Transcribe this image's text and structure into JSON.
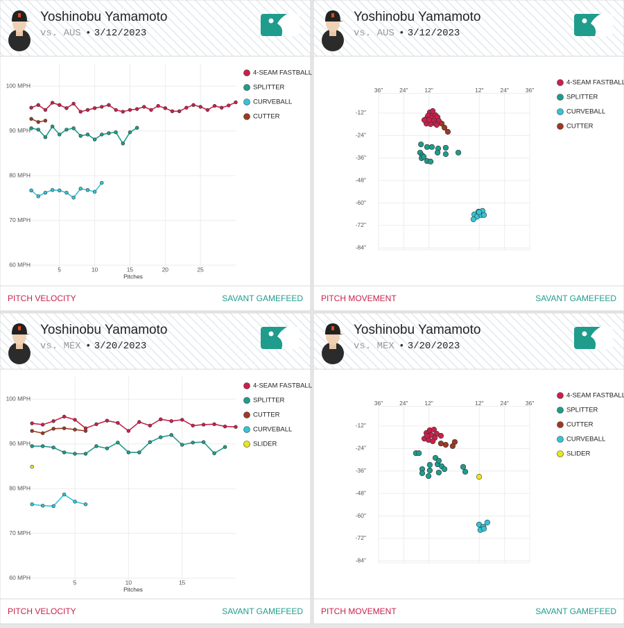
{
  "chart_data": [
    {
      "type": "line",
      "pitcher": "Yoshinobu Yamamoto",
      "opponent": "vs. AUS",
      "separator": "•",
      "date": "3/12/2023",
      "footer_left": "PITCH VELOCITY",
      "footer_right": "SAVANT GAMEFEED",
      "x_label": "Pitches",
      "xlim": [
        0.5,
        30
      ],
      "xticks": [
        5,
        10,
        15,
        20,
        25
      ],
      "ylim": [
        58,
        105
      ],
      "yticks": [
        {
          "value": 60,
          "label": "60 MPH"
        },
        {
          "value": 70,
          "label": "70 MPH"
        },
        {
          "value": 80,
          "label": "80 MPH"
        },
        {
          "value": 90,
          "label": "90 MPH"
        },
        {
          "value": 100,
          "label": "100 MPH"
        }
      ],
      "grid": true,
      "series": [
        {
          "name": "4-SEAM FASTBALL",
          "color": "#cc1f4c",
          "x": [
            1,
            2,
            3,
            4,
            5,
            6,
            7,
            8,
            9,
            10,
            11,
            12,
            13,
            14,
            15,
            16,
            17,
            18,
            19,
            20,
            21,
            22,
            23,
            24,
            25,
            26,
            27,
            28,
            29,
            30
          ],
          "values": [
            95.2,
            95.8,
            94.7,
            96.3,
            95.8,
            95.1,
            96.1,
            94.3,
            94.7,
            95.1,
            95.4,
            95.8,
            94.7,
            94.3,
            94.7,
            94.9,
            95.4,
            94.7,
            95.6,
            95.1,
            94.4,
            94.4,
            95.2,
            95.8,
            95.4,
            94.7,
            95.6,
            95.2,
            95.7,
            96.4
          ]
        },
        {
          "name": "SPLITTER",
          "color": "#1f9c8c",
          "x": [
            1,
            2,
            3,
            4,
            5,
            6,
            7,
            8,
            9,
            10,
            11,
            12,
            13,
            14,
            15,
            16
          ],
          "values": [
            90.6,
            90.3,
            88.6,
            91.0,
            89.2,
            90.3,
            90.6,
            88.9,
            89.2,
            88.1,
            89.2,
            89.5,
            89.7,
            87.2,
            89.7,
            90.7
          ]
        },
        {
          "name": "CURVEBALL",
          "color": "#33c5d6",
          "x": [
            1,
            2,
            3,
            4,
            5,
            6,
            7,
            8,
            9,
            10,
            11
          ],
          "values": [
            76.7,
            75.4,
            76.2,
            76.8,
            76.7,
            76.2,
            75.1,
            77.1,
            76.8,
            76.4,
            78.4
          ]
        },
        {
          "name": "CUTTER",
          "color": "#9c3a22",
          "x": [
            1,
            2,
            3
          ],
          "values": [
            92.7,
            92.0,
            92.3
          ]
        }
      ]
    },
    {
      "type": "scatter",
      "pitcher": "Yoshinobu Yamamoto",
      "opponent": "vs. AUS",
      "separator": "•",
      "date": "3/12/2023",
      "footer_left": "PITCH MOVEMENT",
      "footer_right": "SAVANT GAMEFEED",
      "xlim": [
        -36,
        36
      ],
      "xticks": [
        {
          "value": -36,
          "label": "36\""
        },
        {
          "value": -24,
          "label": "24\""
        },
        {
          "value": -12,
          "label": "12\""
        },
        {
          "value": 12,
          "label": "12\""
        },
        {
          "value": 24,
          "label": "24\""
        },
        {
          "value": 36,
          "label": "36\""
        }
      ],
      "ylim": [
        -85,
        0
      ],
      "yticks": [
        {
          "value": -12,
          "label": "-12\""
        },
        {
          "value": -24,
          "label": "-24\""
        },
        {
          "value": -36,
          "label": "-36\""
        },
        {
          "value": -48,
          "label": "-48\""
        },
        {
          "value": -60,
          "label": "-60\""
        },
        {
          "value": -72,
          "label": "-72\""
        },
        {
          "value": -84,
          "label": "-84\""
        }
      ],
      "grid": true,
      "series": [
        {
          "name": "4-SEAM FASTBALL",
          "color": "#cc1f4c",
          "x": [
            -11.6,
            -10.2,
            -12.5,
            -8.9,
            -13.5,
            -10.9,
            -7.9,
            -12.2,
            -9.6,
            -7.3,
            -13.2,
            -11.2,
            -8.9,
            -14.2,
            -11.9,
            -10.2,
            -8.3
          ],
          "values": [
            -11.6,
            -12.4,
            -13.5,
            -13.1,
            -15.3,
            -14.6,
            -14.2,
            -16.8,
            -16.1,
            -16.1,
            -17.6,
            -17.9,
            -17.6,
            -15.7,
            -15.7,
            -10.9,
            -18.3
          ]
        },
        {
          "name": "SPLITTER",
          "color": "#1f9c8c",
          "x": [
            -15.8,
            -16.2,
            -15.2,
            -12.9,
            -10.6,
            -7.6,
            -4.0,
            2.0,
            -15.5,
            -14.5,
            -12.9,
            -11.2,
            -7.9,
            -4.0
          ],
          "values": [
            -28.7,
            -33.1,
            -34.6,
            -30.1,
            -30.1,
            -30.9,
            -30.5,
            -33.1,
            -36.1,
            -35.3,
            -37.6,
            -37.9,
            -33.1,
            -33.9
          ]
        },
        {
          "name": "CURVEBALL",
          "color": "#33c5d6",
          "x": [
            9.6,
            11.6,
            13.5,
            10.9,
            12.9,
            14.2,
            9.2,
            11.9
          ],
          "values": [
            -66.1,
            -64.6,
            -64.2,
            -67.3,
            -66.4,
            -66.4,
            -68.7,
            -64.9
          ]
        },
        {
          "name": "CUTTER",
          "color": "#9c3a22",
          "x": [
            -5.9,
            -4.6,
            -3.0
          ],
          "values": [
            -17.6,
            -19.8,
            -22.0
          ]
        }
      ]
    },
    {
      "type": "line",
      "pitcher": "Yoshinobu Yamamoto",
      "opponent": "vs. MEX",
      "separator": "•",
      "date": "3/20/2023",
      "footer_left": "PITCH VELOCITY",
      "footer_right": "SAVANT GAMEFEED",
      "x_label": "Pitches",
      "xlim": [
        0.6,
        20
      ],
      "xticks": [
        5,
        10,
        15
      ],
      "ylim": [
        58,
        105
      ],
      "yticks": [
        {
          "value": 60,
          "label": "60 MPH"
        },
        {
          "value": 70,
          "label": "70 MPH"
        },
        {
          "value": 80,
          "label": "80 MPH"
        },
        {
          "value": 90,
          "label": "90 MPH"
        },
        {
          "value": 100,
          "label": "100 MPH"
        }
      ],
      "grid": true,
      "series": [
        {
          "name": "4-SEAM FASTBALL",
          "color": "#cc1f4c",
          "x": [
            1,
            2,
            3,
            4,
            5,
            6,
            7,
            8,
            9,
            10,
            11,
            12,
            13,
            14,
            15,
            16,
            17,
            18,
            19,
            20
          ],
          "values": [
            94.6,
            94.3,
            95.1,
            96.1,
            95.4,
            93.5,
            94.4,
            95.2,
            94.7,
            92.9,
            94.9,
            94.1,
            95.5,
            95.1,
            95.4,
            94.1,
            94.3,
            94.4,
            93.9,
            93.8
          ]
        },
        {
          "name": "SPLITTER",
          "color": "#1f9c8c",
          "x": [
            1,
            2,
            3,
            4,
            5,
            6,
            7,
            8,
            9,
            10,
            11,
            12,
            13,
            14,
            15,
            16,
            17,
            18,
            19
          ],
          "values": [
            89.5,
            89.5,
            89.2,
            88.1,
            87.8,
            87.8,
            89.5,
            89.0,
            90.3,
            88.1,
            88.1,
            90.4,
            91.5,
            92.0,
            89.8,
            90.3,
            90.4,
            87.9,
            89.3
          ]
        },
        {
          "name": "CUTTER",
          "color": "#9c3a22",
          "x": [
            1,
            2,
            3,
            4,
            5,
            6
          ],
          "values": [
            92.9,
            92.4,
            93.4,
            93.5,
            93.2,
            92.9
          ]
        },
        {
          "name": "CURVEBALL",
          "color": "#33c5d6",
          "x": [
            1,
            2,
            3,
            4,
            5,
            6
          ],
          "values": [
            76.5,
            76.2,
            76.1,
            78.7,
            77.1,
            76.5
          ]
        },
        {
          "name": "SLIDER",
          "color": "#e8e81c",
          "x": [
            1
          ],
          "values": [
            84.9
          ]
        }
      ]
    },
    {
      "type": "scatter",
      "pitcher": "Yoshinobu Yamamoto",
      "opponent": "vs. MEX",
      "separator": "•",
      "date": "3/20/2023",
      "footer_left": "PITCH MOVEMENT",
      "footer_right": "SAVANT GAMEFEED",
      "xlim": [
        -36,
        36
      ],
      "xticks": [
        {
          "value": -36,
          "label": "36\""
        },
        {
          "value": -24,
          "label": "24\""
        },
        {
          "value": -12,
          "label": "12\""
        },
        {
          "value": 12,
          "label": "12\""
        },
        {
          "value": 24,
          "label": "24\""
        },
        {
          "value": 36,
          "label": "36\""
        }
      ],
      "ylim": [
        -85,
        0
      ],
      "yticks": [
        {
          "value": -12,
          "label": "-12\""
        },
        {
          "value": -24,
          "label": "-24\""
        },
        {
          "value": -36,
          "label": "-36\""
        },
        {
          "value": -48,
          "label": "-48\""
        },
        {
          "value": -60,
          "label": "-60\""
        },
        {
          "value": -72,
          "label": "-72\""
        },
        {
          "value": -84,
          "label": "-84\""
        }
      ],
      "grid": true,
      "series": [
        {
          "name": "4-SEAM FASTBALL",
          "color": "#cc1f4c",
          "x": [
            -11.6,
            -9.6,
            -13.2,
            -8.3,
            -14.2,
            -10.9,
            -6.3,
            -12.2,
            -9.2,
            -10.2,
            -12.9
          ],
          "values": [
            -14.2,
            -13.9,
            -15.7,
            -16.1,
            -18.7,
            -16.8,
            -17.2,
            -19.4,
            -18.3,
            -20.1,
            -17.2
          ]
        },
        {
          "name": "SPLITTER",
          "color": "#1f9c8c",
          "x": [
            -18.2,
            -16.8,
            -15.2,
            -11.6,
            -7.9,
            -5.9,
            -4.6,
            -12.2,
            -15.2,
            -11.6,
            -7.3,
            4.3,
            5.3,
            -8.9,
            -7.3
          ],
          "values": [
            -26.5,
            -26.5,
            -35.0,
            -32.7,
            -32.4,
            -33.5,
            -35.0,
            -38.7,
            -37.2,
            -35.7,
            -36.8,
            -33.8,
            -36.4,
            -29.0,
            -30.5
          ]
        },
        {
          "name": "CUTTER",
          "color": "#9c3a22",
          "x": [
            -6.3,
            -4.0,
            0.3,
            -0.7
          ],
          "values": [
            -21.3,
            -22.0,
            -20.5,
            -22.7
          ]
        },
        {
          "name": "CURVEBALL",
          "color": "#33c5d6",
          "x": [
            11.9,
            13.9,
            15.8,
            12.5,
            14.2
          ],
          "values": [
            -64.6,
            -65.7,
            -63.5,
            -67.5,
            -66.8
          ]
        },
        {
          "name": "SLIDER",
          "color": "#e8e81c",
          "x": [
            11.9
          ],
          "values": [
            -39.1
          ]
        }
      ]
    }
  ]
}
